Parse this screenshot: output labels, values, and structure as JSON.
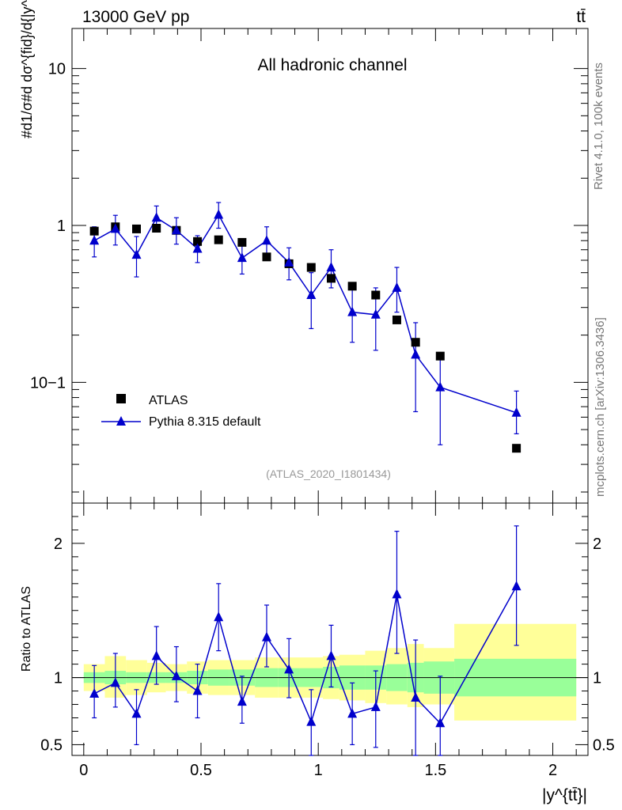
{
  "header": {
    "left_label": "13000 GeV pp",
    "right_label": "tt̄"
  },
  "side_labels": {
    "rivet": "Rivet 4.1.0,  100k events",
    "mcplots": "mcplots.cern.ch [arXiv:1306.3436]"
  },
  "chart_data": [
    {
      "type": "scatter",
      "panel": "main",
      "title": "All hadronic channel",
      "analysis_tag": "(ATLAS_2020_I1801434)",
      "ylabel": "#d1/σ#d dσ^{fid}/d{|y^{tt̄}|}",
      "yscale": "log",
      "ylim": [
        0.017,
        18
      ],
      "xlim": [
        -0.05,
        2.15
      ],
      "yticks": [
        0.1,
        1,
        10
      ],
      "ytick_labels": [
        "10−1",
        "1",
        "10"
      ],
      "legend_position": "lower-left",
      "series": [
        {
          "name": "ATLAS",
          "marker": "square",
          "color": "#000000",
          "x": [
            0.045,
            0.135,
            0.225,
            0.31,
            0.395,
            0.485,
            0.575,
            0.675,
            0.78,
            0.875,
            0.97,
            1.055,
            1.145,
            1.245,
            1.335,
            1.415,
            1.52,
            1.845
          ],
          "y": [
            0.92,
            0.98,
            0.95,
            0.96,
            0.93,
            0.79,
            0.81,
            0.78,
            0.63,
            0.57,
            0.54,
            0.46,
            0.41,
            0.36,
            0.25,
            0.18,
            0.147,
            0.038
          ]
        },
        {
          "name": "Pythia 8.315 default",
          "marker": "triangle",
          "color": "#0000cc",
          "x": [
            0.045,
            0.135,
            0.225,
            0.31,
            0.395,
            0.485,
            0.575,
            0.675,
            0.78,
            0.875,
            0.97,
            1.055,
            1.145,
            1.245,
            1.335,
            1.415,
            1.52,
            1.845
          ],
          "y": [
            0.8,
            0.95,
            0.65,
            1.12,
            0.93,
            0.71,
            1.17,
            0.62,
            0.8,
            0.58,
            0.36,
            0.54,
            0.28,
            0.27,
            0.4,
            0.15,
            0.093,
            0.064
          ],
          "y_low": [
            0.63,
            0.75,
            0.47,
            0.93,
            0.76,
            0.58,
            0.96,
            0.49,
            0.65,
            0.45,
            0.22,
            0.4,
            0.18,
            0.16,
            0.28,
            0.065,
            0.04,
            0.047
          ],
          "y_high": [
            0.98,
            1.16,
            0.85,
            1.33,
            1.12,
            0.86,
            1.4,
            0.78,
            0.98,
            0.72,
            0.5,
            0.7,
            0.4,
            0.4,
            0.54,
            0.24,
            0.15,
            0.088
          ]
        }
      ]
    },
    {
      "type": "scatter",
      "panel": "ratio",
      "ylabel": "Ratio to ATLAS",
      "xlabel": "|y^{tt̄}|",
      "ylim": [
        0.42,
        2.3
      ],
      "xlim": [
        -0.05,
        2.15
      ],
      "xticks": [
        0,
        0.5,
        1,
        1.5,
        2
      ],
      "xtick_labels": [
        "0",
        "0.5",
        "1",
        "1.5",
        "2"
      ],
      "yticks": [
        0.5,
        1,
        2
      ],
      "ytick_labels": [
        "0.5",
        "1",
        "2"
      ],
      "reference_line": 1,
      "bin_edges": [
        0.0,
        0.09,
        0.18,
        0.27,
        0.35,
        0.44,
        0.53,
        0.62,
        0.73,
        0.83,
        0.92,
        1.02,
        1.09,
        1.2,
        1.29,
        1.38,
        1.45,
        1.58,
        2.1
      ],
      "band_inner": {
        "color": "#99ff99",
        "low": [
          0.96,
          0.95,
          0.96,
          0.96,
          0.96,
          0.95,
          0.94,
          0.94,
          0.93,
          0.93,
          0.93,
          0.92,
          0.91,
          0.91,
          0.9,
          0.89,
          0.88,
          0.86
        ],
        "high": [
          1.04,
          1.05,
          1.04,
          1.04,
          1.04,
          1.05,
          1.06,
          1.06,
          1.07,
          1.07,
          1.07,
          1.08,
          1.09,
          1.09,
          1.1,
          1.11,
          1.12,
          1.14
        ]
      },
      "band_outer": {
        "color": "#ffff99",
        "low": [
          0.9,
          0.85,
          0.87,
          0.89,
          0.9,
          0.88,
          0.87,
          0.87,
          0.85,
          0.85,
          0.85,
          0.84,
          0.83,
          0.81,
          0.8,
          0.78,
          0.8,
          0.68
        ],
        "high": [
          1.1,
          1.16,
          1.13,
          1.11,
          1.1,
          1.12,
          1.13,
          1.13,
          1.15,
          1.15,
          1.15,
          1.16,
          1.17,
          1.2,
          1.22,
          1.25,
          1.22,
          1.4
        ]
      },
      "series": [
        {
          "name": "Pythia 8.315 default / ATLAS",
          "marker": "triangle",
          "color": "#0000cc",
          "x": [
            0.045,
            0.135,
            0.225,
            0.31,
            0.395,
            0.485,
            0.575,
            0.675,
            0.78,
            0.875,
            0.97,
            1.055,
            1.145,
            1.245,
            1.335,
            1.415,
            1.52,
            1.845
          ],
          "y": [
            0.88,
            0.96,
            0.73,
            1.16,
            1.01,
            0.9,
            1.45,
            0.82,
            1.3,
            1.06,
            0.67,
            1.16,
            0.73,
            0.78,
            1.62,
            0.85,
            0.66,
            1.68
          ],
          "y_low": [
            0.7,
            0.78,
            0.5,
            0.95,
            0.82,
            0.7,
            1.2,
            0.66,
            1.08,
            0.85,
            0.42,
            0.93,
            0.5,
            0.48,
            1.18,
            0.4,
            0.4,
            1.24
          ],
          "y_high": [
            1.09,
            1.18,
            0.91,
            1.38,
            1.23,
            1.1,
            1.7,
            1.01,
            1.54,
            1.29,
            0.91,
            1.39,
            0.96,
            1.05,
            2.09,
            1.28,
            1.01,
            2.13
          ]
        }
      ]
    }
  ]
}
